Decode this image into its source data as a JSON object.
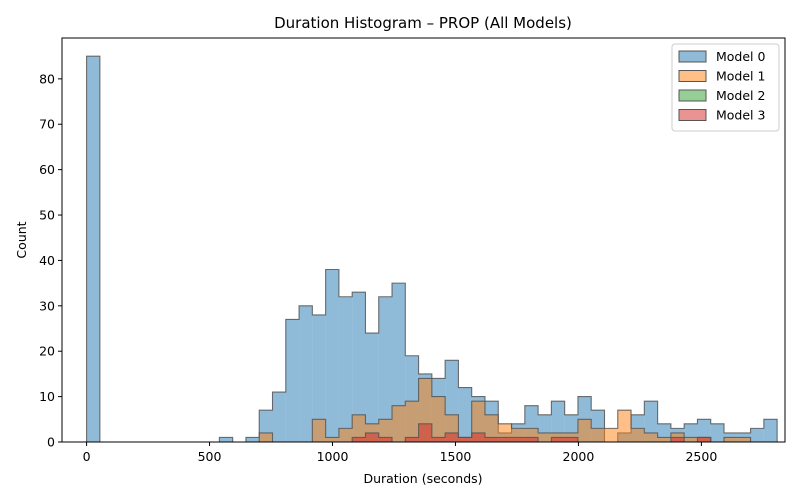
{
  "chart_data": {
    "type": "bar",
    "title": "Duration Histogram – PROP (All Models)",
    "xlabel": "Duration (seconds)",
    "ylabel": "Count",
    "xlim": [
      -100,
      2840
    ],
    "ylim": [
      0,
      89
    ],
    "xticks": [
      0,
      500,
      1000,
      1500,
      2000,
      2500
    ],
    "yticks": [
      0,
      10,
      20,
      30,
      40,
      50,
      60,
      70,
      80
    ],
    "bin_start": 0,
    "bin_width": 54,
    "grid": false,
    "legend_position": "top-right",
    "series": [
      {
        "name": "Model 0",
        "color": "#1f77b4",
        "counts": [
          85,
          0,
          0,
          0,
          0,
          0,
          0,
          0,
          0,
          0,
          1,
          0,
          1,
          7,
          11,
          27,
          30,
          28,
          38,
          32,
          33,
          24,
          32,
          35,
          19,
          15,
          14,
          18,
          12,
          10,
          9,
          2,
          4,
          8,
          6,
          9,
          6,
          10,
          7,
          0,
          2,
          6,
          9,
          4,
          3,
          4,
          5,
          4,
          2,
          2,
          3,
          5
        ]
      },
      {
        "name": "Model 1",
        "color": "#ff7f0e",
        "counts": [
          0,
          0,
          0,
          0,
          0,
          0,
          0,
          0,
          0,
          0,
          0,
          0,
          0,
          2,
          0,
          0,
          0,
          5,
          1,
          3,
          6,
          4,
          5,
          8,
          9,
          14,
          10,
          6,
          1,
          9,
          6,
          4,
          3,
          3,
          2,
          2,
          2,
          5,
          3,
          3,
          7,
          3,
          2,
          1,
          2,
          1,
          1,
          0,
          1,
          1,
          0,
          0
        ]
      },
      {
        "name": "Model 2",
        "color": "#2ca02c",
        "counts": [
          0,
          0,
          0,
          0,
          0,
          0,
          0,
          0,
          0,
          0,
          0,
          0,
          0,
          0,
          0,
          0,
          0,
          0,
          0,
          0,
          0,
          0,
          0,
          0,
          0,
          0,
          0,
          0,
          0,
          0,
          0,
          0,
          0,
          0,
          0,
          0,
          0,
          0,
          0,
          0,
          0,
          0,
          0,
          0,
          0,
          0,
          0,
          0,
          0,
          0,
          0,
          0
        ]
      },
      {
        "name": "Model 3",
        "color": "#d62728",
        "counts": [
          0,
          0,
          0,
          0,
          0,
          0,
          0,
          0,
          0,
          0,
          0,
          0,
          0,
          0,
          0,
          0,
          0,
          0,
          0,
          0,
          1,
          2,
          1,
          0,
          1,
          4,
          1,
          2,
          1,
          2,
          1,
          1,
          1,
          1,
          0,
          1,
          1,
          0,
          0,
          0,
          0,
          0,
          0,
          0,
          1,
          0,
          1,
          0,
          0,
          0,
          0,
          0
        ]
      }
    ]
  }
}
